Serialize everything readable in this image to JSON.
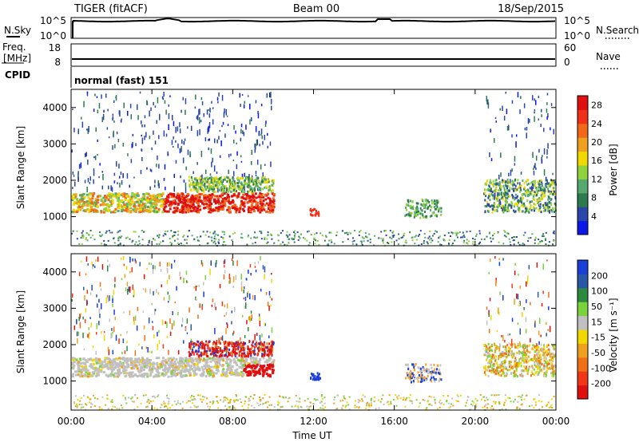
{
  "header": {
    "left_title": "TIGER (fitACF)",
    "center_title": "Beam 00",
    "right_title": "18/Sep/2015"
  },
  "summary_panels": {
    "nsky": {
      "label": "N.Sky",
      "ticks": [
        "10^5",
        "10^0"
      ]
    },
    "nsearch": {
      "label": "N.Search",
      "ticks": [
        "10^5",
        "10^0"
      ]
    },
    "freq": {
      "label_line1": "Freq.",
      "label_line2": "[MHz]",
      "ticks": [
        "18",
        "8"
      ]
    },
    "nave": {
      "label": "Nave",
      "ticks": [
        "60",
        "0"
      ]
    },
    "cpid": {
      "label": "CPID",
      "value": "normal (fast) 151"
    }
  },
  "colors": {
    "power_scale": [
      "#0a18e8",
      "#2a46a8",
      "#2c7a4e",
      "#55a86e",
      "#8fd23c",
      "#f0d800",
      "#f0a020",
      "#f06818",
      "#f03018",
      "#e01010"
    ],
    "velocity_scale": [
      "#1a3ed8",
      "#2a56a8",
      "#2c8a3e",
      "#7ad23c",
      "#c0c0c0",
      "#f0d800",
      "#f0a020",
      "#f07018",
      "#f03818",
      "#e01010"
    ]
  },
  "chart_data": [
    {
      "type": "heatmap",
      "title": "Power",
      "xlabel": "Time UT",
      "ylabel": "Slant Range [km]",
      "x_ticks": [
        "00:00",
        "04:00",
        "08:00",
        "12:00",
        "16:00",
        "20:00",
        "00:00"
      ],
      "y_ticks": [
        1000,
        2000,
        3000,
        4000
      ],
      "ylim": [
        200,
        4500
      ],
      "colorbar": {
        "label": "Power [dB]",
        "ticks": [
          4,
          8,
          12,
          16,
          20,
          24,
          28
        ],
        "range": [
          0,
          30
        ]
      },
      "features": [
        {
          "time_start": "00:00",
          "time_end": "10:00",
          "range_start": 1200,
          "range_end": 1600,
          "value_db": 24
        },
        {
          "time_start": "06:00",
          "time_end": "10:00",
          "range_start": 1700,
          "range_end": 2100,
          "value_db": 12
        },
        {
          "time_start": "20:30",
          "time_end": "24:00",
          "range_start": 1200,
          "range_end": 2000,
          "value_db": 10
        }
      ]
    },
    {
      "type": "heatmap",
      "title": "Velocity",
      "xlabel": "Time UT",
      "ylabel": "Slant Range [km]",
      "x_ticks": [
        "00:00",
        "04:00",
        "08:00",
        "12:00",
        "16:00",
        "20:00",
        "00:00"
      ],
      "y_ticks": [
        1000,
        2000,
        3000,
        4000
      ],
      "ylim": [
        200,
        4500
      ],
      "colorbar": {
        "label": "Velocity [m s⁻¹]",
        "ticks": [
          200,
          100,
          50,
          15,
          -15,
          -50,
          -100,
          -200
        ],
        "range": [
          -250,
          250
        ]
      },
      "features": [
        {
          "time_start": "00:00",
          "time_end": "10:00",
          "range_start": 1200,
          "range_end": 1600,
          "value_ms": 0
        },
        {
          "time_start": "06:00",
          "time_end": "10:00",
          "range_start": 1700,
          "range_end": 2100,
          "value_ms": -200
        },
        {
          "time_start": "20:30",
          "time_end": "24:00",
          "range_start": 1200,
          "range_end": 2000,
          "value_ms": -50
        }
      ]
    }
  ]
}
